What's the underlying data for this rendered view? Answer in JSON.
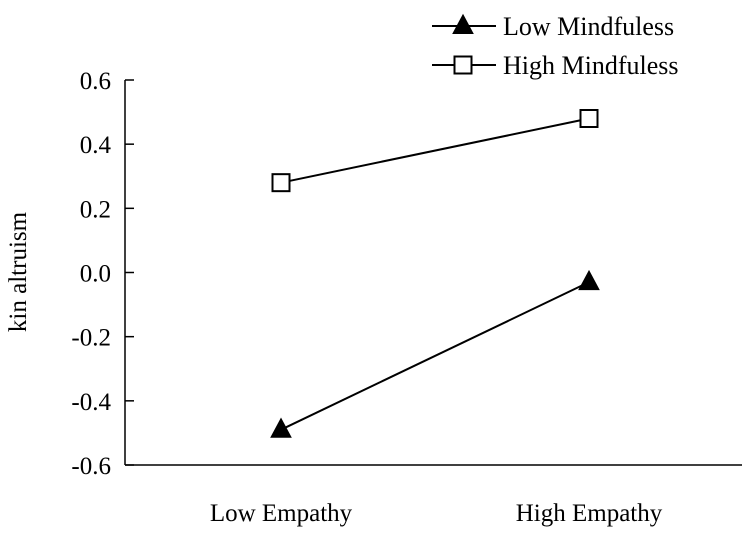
{
  "chart_data": {
    "type": "line",
    "title": "",
    "xlabel": "",
    "ylabel": "kin altruism",
    "categories": [
      "Low Empathy",
      "High Empathy"
    ],
    "ylim": [
      -0.6,
      0.6
    ],
    "yticks": [
      0.6,
      0.4,
      0.2,
      0.0,
      -0.2,
      -0.4,
      -0.6
    ],
    "ytick_labels": [
      "0.6",
      "0.4",
      "0.2",
      "0.0",
      "-0.2",
      "-0.4",
      "-0.6"
    ],
    "grid": false,
    "legend_position": "top-right",
    "series": [
      {
        "name": "Low Mindfuless",
        "marker": "filled-triangle",
        "values": [
          -0.49,
          -0.03
        ]
      },
      {
        "name": "High Mindfuless",
        "marker": "open-square",
        "values": [
          0.28,
          0.48
        ]
      }
    ],
    "colors": {
      "line": "#000000",
      "axis": "#000000",
      "background": "#ffffff"
    }
  }
}
